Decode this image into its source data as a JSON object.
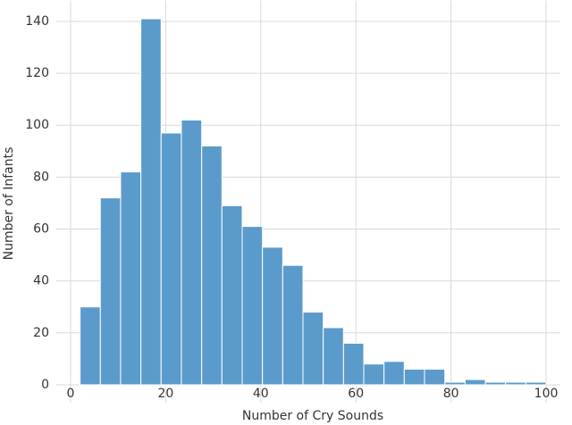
{
  "chart_data": {
    "type": "histogram",
    "xlabel": "Number of Cry Sounds",
    "ylabel": "Number of Infants",
    "bins": [
      2,
      6.26,
      10.52,
      14.78,
      19.04,
      23.3,
      27.57,
      31.83,
      36.09,
      40.35,
      44.61,
      48.87,
      53.13,
      57.39,
      61.65,
      65.91,
      70.17,
      74.43,
      78.7,
      82.96,
      87.22,
      91.48,
      95.74,
      100
    ],
    "values": [
      30,
      72,
      82,
      141,
      97,
      102,
      92,
      69,
      61,
      53,
      46,
      28,
      22,
      16,
      8,
      9,
      6,
      6,
      1,
      2,
      1,
      1,
      1
    ],
    "color": "#5b9bcb",
    "xlim": [
      -3,
      103
    ],
    "ylim": [
      -7,
      148
    ],
    "xticks": [
      0,
      20,
      40,
      60,
      80,
      100
    ],
    "yticks": [
      0,
      20,
      40,
      60,
      80,
      100,
      120,
      140
    ],
    "grid": true
  }
}
